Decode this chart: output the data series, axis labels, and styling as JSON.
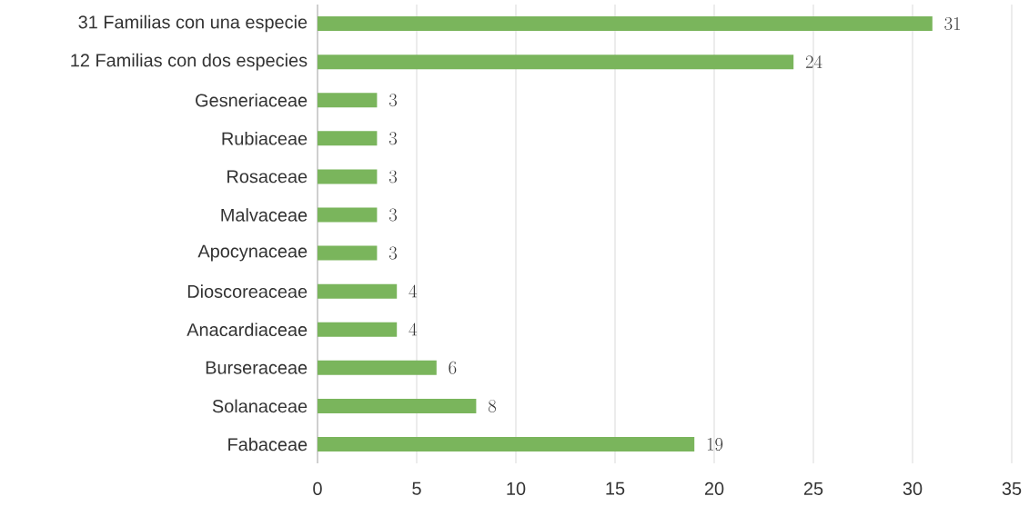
{
  "chart_data": {
    "type": "bar",
    "orientation": "horizontal",
    "categories": [
      "31 Familias con una especie",
      "12 Familias con dos especies",
      "Gesneriaceae",
      "Rubiaceae",
      "Rosaceae",
      "Malvaceae",
      "Apocynaceae",
      "Dioscoreaceae",
      "Anacardiaceae",
      "Burseraceae",
      "Solanaceae",
      "Fabaceae"
    ],
    "values": [
      31,
      24,
      3,
      3,
      3,
      3,
      3,
      4,
      4,
      6,
      8,
      19
    ],
    "color": "#7ab55c",
    "data_labels": true,
    "grid": "x",
    "xlim": [
      0,
      35
    ],
    "xticks": [
      0,
      5,
      10,
      15,
      20,
      25,
      30,
      35
    ]
  }
}
